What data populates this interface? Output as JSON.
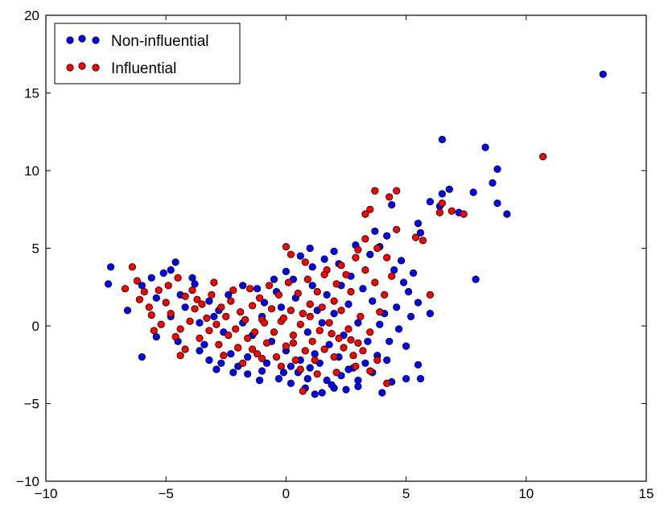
{
  "chart_data": {
    "type": "scatter",
    "title": "",
    "xlabel": "",
    "ylabel": "",
    "xlim": [
      -10,
      15
    ],
    "ylim": [
      -10,
      20
    ],
    "xticks": [
      -10,
      -5,
      0,
      5,
      10,
      15
    ],
    "yticks": [
      -10,
      -5,
      0,
      5,
      10,
      15,
      20
    ],
    "xtick_labels": [
      "−10",
      "−5",
      "0",
      "5",
      "10",
      "15"
    ],
    "ytick_labels": [
      "−10",
      "−5",
      "0",
      "5",
      "10",
      "15",
      "20"
    ],
    "grid": false,
    "legend_position": "top-left",
    "series": [
      {
        "name": "Non-influential",
        "color": "#0000ff",
        "points": [
          [
            13.2,
            16.2
          ],
          [
            8.3,
            11.5
          ],
          [
            6.5,
            12.0
          ],
          [
            8.8,
            10.1
          ],
          [
            8.6,
            9.2
          ],
          [
            6.8,
            8.8
          ],
          [
            6.5,
            8.5
          ],
          [
            6.0,
            8.0
          ],
          [
            7.8,
            8.6
          ],
          [
            9.2,
            7.2
          ],
          [
            8.8,
            7.9
          ],
          [
            6.4,
            7.7
          ],
          [
            7.2,
            7.3
          ],
          [
            5.5,
            6.6
          ],
          [
            5.6,
            6.0
          ],
          [
            7.9,
            3.0
          ],
          [
            6.0,
            0.8
          ],
          [
            -7.3,
            3.8
          ],
          [
            -7.4,
            2.7
          ],
          [
            -6.6,
            1.0
          ],
          [
            -6.0,
            -2.0
          ],
          [
            -4.6,
            4.1
          ],
          [
            -5.1,
            3.4
          ],
          [
            -5.6,
            3.1
          ],
          [
            -4.8,
            3.6
          ],
          [
            -5.4,
            -0.7
          ],
          [
            -4.5,
            -1.0
          ],
          [
            -3.8,
            2.7
          ],
          [
            -3.2,
            1.6
          ],
          [
            -2.8,
            1.0
          ],
          [
            3.7,
            6.1
          ],
          [
            4.2,
            5.8
          ],
          [
            4.4,
            7.8
          ],
          [
            3.9,
            5.1
          ],
          [
            4.8,
            4.2
          ],
          [
            5.3,
            3.4
          ],
          [
            5.1,
            2.2
          ],
          [
            5.5,
            1.5
          ],
          [
            5.2,
            0.6
          ],
          [
            4.7,
            -0.2
          ],
          [
            5.0,
            -1.3
          ],
          [
            5.5,
            -2.5
          ],
          [
            5.6,
            -3.4
          ],
          [
            5.0,
            -3.4
          ],
          [
            4.4,
            -3.6
          ],
          [
            4.0,
            -4.3
          ],
          [
            3.0,
            -3.9
          ],
          [
            2.5,
            -4.1
          ],
          [
            2.0,
            -4.0
          ],
          [
            1.5,
            -4.3
          ],
          [
            1.2,
            -4.4
          ],
          [
            0.8,
            -4.0
          ],
          [
            0.2,
            -3.7
          ],
          [
            -0.3,
            -3.4
          ],
          [
            -1.1,
            -3.5
          ],
          [
            -1.6,
            -3.1
          ],
          [
            -2.2,
            -3.0
          ],
          [
            -2.9,
            -2.8
          ],
          [
            -3.2,
            -2.2
          ],
          [
            -3.6,
            -1.6
          ],
          [
            -2.0,
            -2.6
          ],
          [
            -1.0,
            -2.9
          ],
          [
            0.5,
            -3.0
          ],
          [
            1.0,
            -2.7
          ],
          [
            1.7,
            -3.5
          ],
          [
            2.3,
            -3.2
          ],
          [
            2.8,
            -2.7
          ],
          [
            3.3,
            -2.4
          ],
          [
            3.8,
            -1.9
          ],
          [
            4.3,
            -1.0
          ],
          [
            4.1,
            0.8
          ],
          [
            3.6,
            1.6
          ],
          [
            3.2,
            2.4
          ],
          [
            2.7,
            3.2
          ],
          [
            2.2,
            4.0
          ],
          [
            1.6,
            4.3
          ],
          [
            1.1,
            3.8
          ],
          [
            0.6,
            4.5
          ],
          [
            0.0,
            3.5
          ],
          [
            -0.5,
            3.0
          ],
          [
            -1.2,
            2.4
          ],
          [
            -1.8,
            2.6
          ],
          [
            -2.4,
            2.0
          ],
          [
            -0.9,
            1.5
          ],
          [
            -0.2,
            1.2
          ],
          [
            0.4,
            1.8
          ],
          [
            1.3,
            1.0
          ],
          [
            2.0,
            0.8
          ],
          [
            2.6,
            1.4
          ],
          [
            3.0,
            0.2
          ],
          [
            2.4,
            -0.6
          ],
          [
            1.8,
            -1.2
          ],
          [
            1.2,
            -1.8
          ],
          [
            0.6,
            -2.2
          ],
          [
            0.0,
            -1.6
          ],
          [
            -0.6,
            -1.0
          ],
          [
            -1.4,
            -0.6
          ],
          [
            -2.0,
            -1.4
          ],
          [
            -2.6,
            -0.4
          ],
          [
            -3.0,
            0.6
          ],
          [
            -3.6,
            0.2
          ],
          [
            -4.2,
            1.2
          ],
          [
            -4.8,
            0.6
          ],
          [
            -5.4,
            1.8
          ],
          [
            -6.0,
            2.6
          ],
          [
            -3.4,
            -1.2
          ],
          [
            -1.6,
            -2.0
          ],
          [
            0.9,
            -0.4
          ],
          [
            1.5,
            0.2
          ],
          [
            2.2,
            -2.0
          ],
          [
            3.4,
            -1.0
          ],
          [
            3.9,
            0.1
          ],
          [
            4.6,
            1.2
          ],
          [
            4.9,
            2.8
          ],
          [
            4.5,
            3.6
          ],
          [
            3.5,
            4.6
          ],
          [
            2.9,
            5.2
          ],
          [
            2.0,
            4.8
          ],
          [
            1.0,
            5.0
          ],
          [
            0.3,
            3.0
          ],
          [
            -0.4,
            2.2
          ],
          [
            -1.0,
            0.6
          ],
          [
            -1.8,
            0.2
          ],
          [
            -2.3,
            -1.8
          ],
          [
            -2.7,
            -2.4
          ],
          [
            -0.8,
            -2.4
          ],
          [
            0.2,
            -2.6
          ],
          [
            1.4,
            -2.4
          ],
          [
            2.6,
            -2.8
          ],
          [
            3.6,
            -3.0
          ],
          [
            4.2,
            -2.2
          ],
          [
            3.0,
            -3.5
          ],
          [
            1.9,
            -3.8
          ],
          [
            0.9,
            -3.4
          ],
          [
            -0.1,
            -3.0
          ],
          [
            1.1,
            2.6
          ],
          [
            1.7,
            2.0
          ],
          [
            2.3,
            2.6
          ],
          [
            -3.9,
            3.1
          ],
          [
            -4.4,
            2.0
          ]
        ]
      },
      {
        "name": "Influential",
        "color": "#ff0000",
        "points": [
          [
            10.7,
            10.9
          ],
          [
            6.4,
            7.3
          ],
          [
            4.6,
            8.7
          ],
          [
            4.3,
            8.3
          ],
          [
            3.7,
            8.7
          ],
          [
            3.5,
            7.5
          ],
          [
            3.3,
            7.2
          ],
          [
            6.5,
            7.9
          ],
          [
            6.9,
            7.4
          ],
          [
            7.4,
            7.2
          ],
          [
            4.6,
            6.2
          ],
          [
            5.7,
            5.5
          ],
          [
            6.0,
            2.0
          ],
          [
            5.4,
            5.7
          ],
          [
            -6.4,
            3.8
          ],
          [
            -6.2,
            2.9
          ],
          [
            -6.7,
            2.4
          ],
          [
            -5.9,
            2.2
          ],
          [
            -6.1,
            1.7
          ],
          [
            -5.7,
            1.2
          ],
          [
            -5.3,
            2.3
          ],
          [
            -4.9,
            2.6
          ],
          [
            -4.5,
            3.1
          ],
          [
            -4.2,
            1.9
          ],
          [
            -3.9,
            2.3
          ],
          [
            -3.5,
            1.4
          ],
          [
            -3.1,
            2.0
          ],
          [
            -2.7,
            1.2
          ],
          [
            -2.3,
            1.6
          ],
          [
            -1.9,
            0.9
          ],
          [
            -1.4,
            1.3
          ],
          [
            -1.0,
            0.4
          ],
          [
            -0.6,
            1.1
          ],
          [
            -0.2,
            0.3
          ],
          [
            0.2,
            1.0
          ],
          [
            0.6,
            0.1
          ],
          [
            1.0,
            0.6
          ],
          [
            1.4,
            -0.3
          ],
          [
            1.8,
            0.2
          ],
          [
            2.2,
            -0.8
          ],
          [
            2.6,
            -0.2
          ],
          [
            3.0,
            -1.1
          ],
          [
            3.2,
            -1.6
          ],
          [
            2.8,
            -1.9
          ],
          [
            2.4,
            -1.4
          ],
          [
            2.0,
            -2.0
          ],
          [
            1.6,
            -1.5
          ],
          [
            1.2,
            -2.2
          ],
          [
            0.8,
            -1.6
          ],
          [
            0.4,
            -2.2
          ],
          [
            0.0,
            -1.3
          ],
          [
            -0.4,
            -2.0
          ],
          [
            -0.8,
            -1.1
          ],
          [
            -1.2,
            -1.8
          ],
          [
            -1.6,
            -0.8
          ],
          [
            -2.0,
            -1.4
          ],
          [
            -2.4,
            -0.6
          ],
          [
            -2.8,
            -1.2
          ],
          [
            -3.2,
            -0.3
          ],
          [
            -3.6,
            -0.8
          ],
          [
            -4.0,
            0.3
          ],
          [
            -4.4,
            -0.2
          ],
          [
            -4.8,
            0.8
          ],
          [
            -5.2,
            0.1
          ],
          [
            -5.6,
            0.7
          ],
          [
            -4.6,
            -0.7
          ],
          [
            -4.2,
            -1.5
          ],
          [
            -3.8,
            1.1
          ],
          [
            -3.3,
            0.5
          ],
          [
            -2.9,
            0.1
          ],
          [
            -2.5,
            0.6
          ],
          [
            -2.1,
            -0.2
          ],
          [
            -1.7,
            0.4
          ],
          [
            -1.3,
            -0.4
          ],
          [
            -0.9,
            0.2
          ],
          [
            -0.5,
            -0.4
          ],
          [
            -0.1,
            0.5
          ],
          [
            0.3,
            -0.6
          ],
          [
            0.7,
            0.8
          ],
          [
            1.1,
            -1.0
          ],
          [
            1.5,
            1.2
          ],
          [
            1.9,
            -0.5
          ],
          [
            2.3,
            1.0
          ],
          [
            2.7,
            -0.9
          ],
          [
            3.1,
            0.6
          ],
          [
            3.5,
            -0.4
          ],
          [
            3.9,
            0.9
          ],
          [
            4.1,
            2.0
          ],
          [
            3.7,
            2.8
          ],
          [
            3.3,
            3.6
          ],
          [
            2.9,
            4.4
          ],
          [
            2.5,
            3.3
          ],
          [
            2.1,
            2.7
          ],
          [
            1.7,
            3.6
          ],
          [
            1.3,
            2.2
          ],
          [
            0.9,
            3.0
          ],
          [
            0.5,
            2.1
          ],
          [
            0.1,
            2.8
          ],
          [
            -0.3,
            2.0
          ],
          [
            -0.7,
            2.6
          ],
          [
            -1.1,
            1.8
          ],
          [
            -1.5,
            2.4
          ],
          [
            0.0,
            5.1
          ],
          [
            0.2,
            4.6
          ],
          [
            0.8,
            4.1
          ],
          [
            1.6,
            3.3
          ],
          [
            2.3,
            3.9
          ],
          [
            3.0,
            4.9
          ],
          [
            3.3,
            5.6
          ],
          [
            3.8,
            5.0
          ],
          [
            4.2,
            4.4
          ],
          [
            4.4,
            3.2
          ],
          [
            0.7,
            -4.2
          ],
          [
            1.3,
            -3.1
          ],
          [
            2.1,
            -3.0
          ],
          [
            2.9,
            -2.6
          ],
          [
            3.5,
            -2.9
          ],
          [
            4.2,
            -3.7
          ],
          [
            3.8,
            -2.2
          ],
          [
            -4.4,
            -1.9
          ],
          [
            -2.6,
            -1.9
          ],
          [
            -1.8,
            -2.4
          ],
          [
            -1.0,
            -2.1
          ],
          [
            -0.2,
            -2.6
          ],
          [
            0.6,
            -2.8
          ],
          [
            1.0,
            1.4
          ],
          [
            2.0,
            1.6
          ],
          [
            2.7,
            2.2
          ],
          [
            -2.2,
            2.3
          ],
          [
            -3.0,
            2.8
          ],
          [
            -3.7,
            1.7
          ],
          [
            -5.0,
            1.5
          ],
          [
            -5.5,
            -0.3
          ],
          [
            -1.4,
            -1.5
          ],
          [
            0.3,
            -1.1
          ]
        ]
      }
    ]
  }
}
